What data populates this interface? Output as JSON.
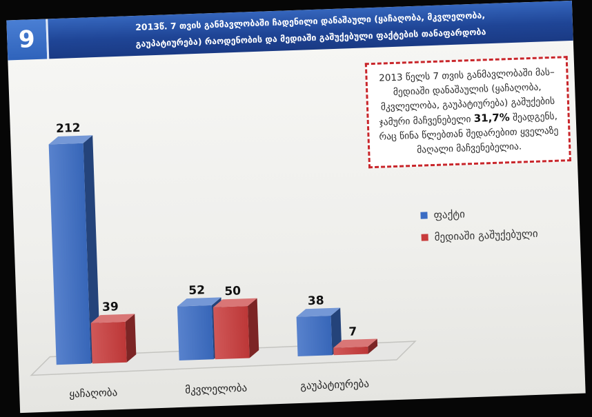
{
  "slide": {
    "number": "9",
    "title_line1": "2013წ. 7 თვის განმავლობაში ჩადენილი დანაშაული (ყაჩაღობა, მკვლელობა,",
    "title_line2": "გაუპატიურება) რაოდენობის და მედიაში გაშუქებული ფაქტების თანაფარდობა"
  },
  "colors": {
    "title_bar": "#1f4596",
    "slide_number_box": "#3a6ec8",
    "note_border": "#c8252a"
  },
  "note": {
    "before": "2013 წელს 7 თვის განმავლობაში მას–მედიაში დანაშაულის (ყაჩაღობა, მკვლელობა, გაუპატიურება) გაშუქების ჯამური მაჩვენებელი ",
    "highlight": "31,7%",
    "after": " შეადგენს, რაც წინა წლებთან შედარებით ყველაზე მაღალი მაჩვენებელია."
  },
  "chart_data": {
    "type": "bar",
    "three_d": true,
    "categories": [
      "ყაჩაღობა",
      "მკვლელობა",
      "გაუპატიურება"
    ],
    "series": [
      {
        "name": "ფაქტი",
        "values": [
          212,
          52,
          38
        ],
        "color": "#3a6cc4"
      },
      {
        "name": "მედიაში გაშუქებული",
        "values": [
          39,
          50,
          7
        ],
        "color": "#c83b3b"
      }
    ],
    "data_labels": true,
    "legend": "right",
    "grid": false
  }
}
